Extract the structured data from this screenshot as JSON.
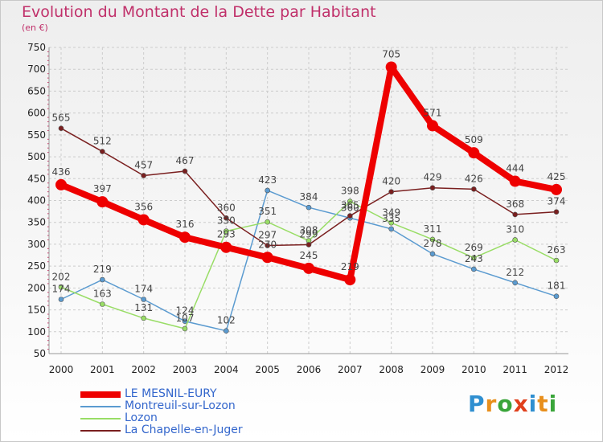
{
  "title": "Evolution du Montant de la Dette par Habitant",
  "subtitle": "(en €)",
  "logo_text": "Proxiti",
  "chart_data": {
    "type": "line",
    "x": [
      "2000",
      "2001",
      "2002",
      "2003",
      "2004",
      "2005",
      "2006",
      "2007",
      "2008",
      "2009",
      "2010",
      "2011",
      "2012"
    ],
    "ylim": [
      50,
      750
    ],
    "yticks": [
      50,
      100,
      150,
      200,
      250,
      300,
      350,
      400,
      450,
      500,
      550,
      600,
      650,
      700,
      750
    ],
    "grid": true,
    "legend_position": "bottom-left",
    "series": [
      {
        "name": "LE MESNIL-EURY",
        "color": "#ee0000",
        "width": 8,
        "dot": 7,
        "values": [
          436,
          397,
          356,
          316,
          293,
          270,
          245,
          219,
          705,
          571,
          509,
          444,
          425
        ],
        "labels": [
          "436",
          "397",
          "356",
          "316",
          "293",
          "270",
          "245",
          "219",
          "705",
          "571",
          "509",
          "444",
          "425"
        ]
      },
      {
        "name": "Montreuil-sur-Lozon",
        "color": "#5b9bd0",
        "width": 1.5,
        "dot": 3,
        "values": [
          174,
          219,
          174,
          124,
          102,
          423,
          384,
          360,
          335,
          278,
          243,
          212,
          181
        ],
        "labels": [
          "174",
          "219",
          "174",
          "124",
          "102",
          "423",
          "384",
          "360",
          "335",
          "278",
          "243",
          "212",
          "181"
        ]
      },
      {
        "name": "Lozon",
        "color": "#99dd66",
        "width": 1.5,
        "dot": 3,
        "values": [
          202,
          163,
          131,
          107,
          330,
          351,
          308,
          398,
          349,
          311,
          269,
          310,
          263
        ],
        "labels": [
          "202",
          "163",
          "131",
          "107",
          "330",
          "351",
          "308",
          "398",
          "349",
          "311",
          "269",
          "310",
          "263"
        ]
      },
      {
        "name": "La Chapelle-en-Juger",
        "color": "#7a1f1f",
        "width": 1.5,
        "dot": 3,
        "values": [
          565,
          512,
          457,
          467,
          360,
          297,
          299,
          365,
          420,
          429,
          426,
          368,
          374
        ],
        "labels": [
          "565",
          "512",
          "457",
          "467",
          "360",
          "297",
          "299",
          "365",
          "420",
          "429",
          "426",
          "368",
          "374"
        ]
      }
    ]
  }
}
